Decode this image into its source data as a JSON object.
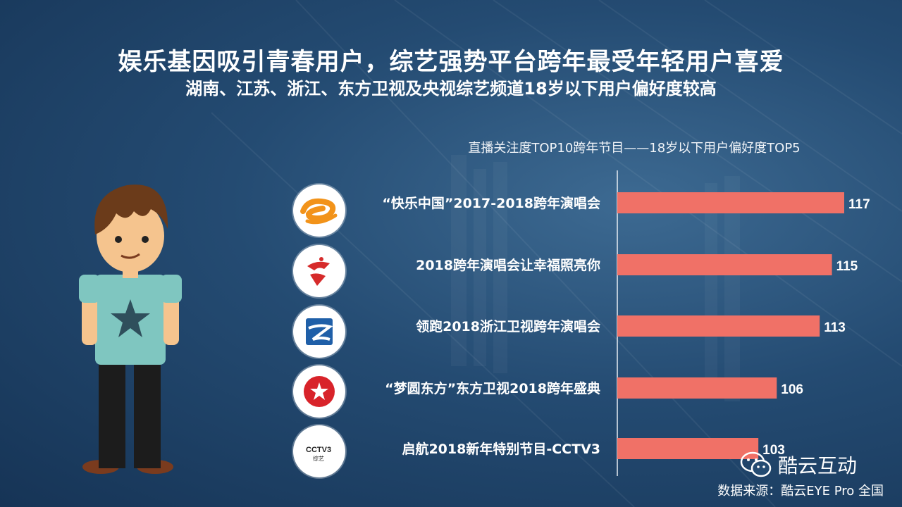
{
  "title": "娱乐基因吸引青春用户，综艺强势平台跨年最受年轻用户喜爱",
  "subtitle": "湖南、江苏、浙江、东方卫视及央视综艺频道18岁以下用户偏好度较高",
  "chart_data": {
    "type": "bar",
    "orientation": "horizontal",
    "title": "直播关注度TOP10跨年节目——18岁以下用户偏好度TOP5",
    "categories": [
      "“快乐中国”2017-2018跨年演唱会",
      "2018跨年演唱会让幸福照亮你",
      "领跑2018浙江卫视跨年演唱会",
      "“梦圆东方”东方卫视2018跨年盛典",
      "启航2018新年特别节目-CCTV3"
    ],
    "values": [
      117,
      115,
      113,
      106,
      103
    ],
    "xlim": [
      80,
      117
    ],
    "bar_color": "#f07167",
    "grid": false
  },
  "logos": [
    {
      "icon": "hunan-tv-logo-icon"
    },
    {
      "icon": "jiangsu-tv-logo-icon"
    },
    {
      "icon": "zhejiang-tv-logo-icon"
    },
    {
      "icon": "dragon-tv-logo-icon"
    },
    {
      "icon": "cctv3-logo-icon",
      "text": "CCTV3",
      "subtext": "综艺"
    }
  ],
  "brand": {
    "name": "酷云互动",
    "icon": "wechat-icon"
  },
  "source": "数据来源：酷云EYE Pro 全国"
}
